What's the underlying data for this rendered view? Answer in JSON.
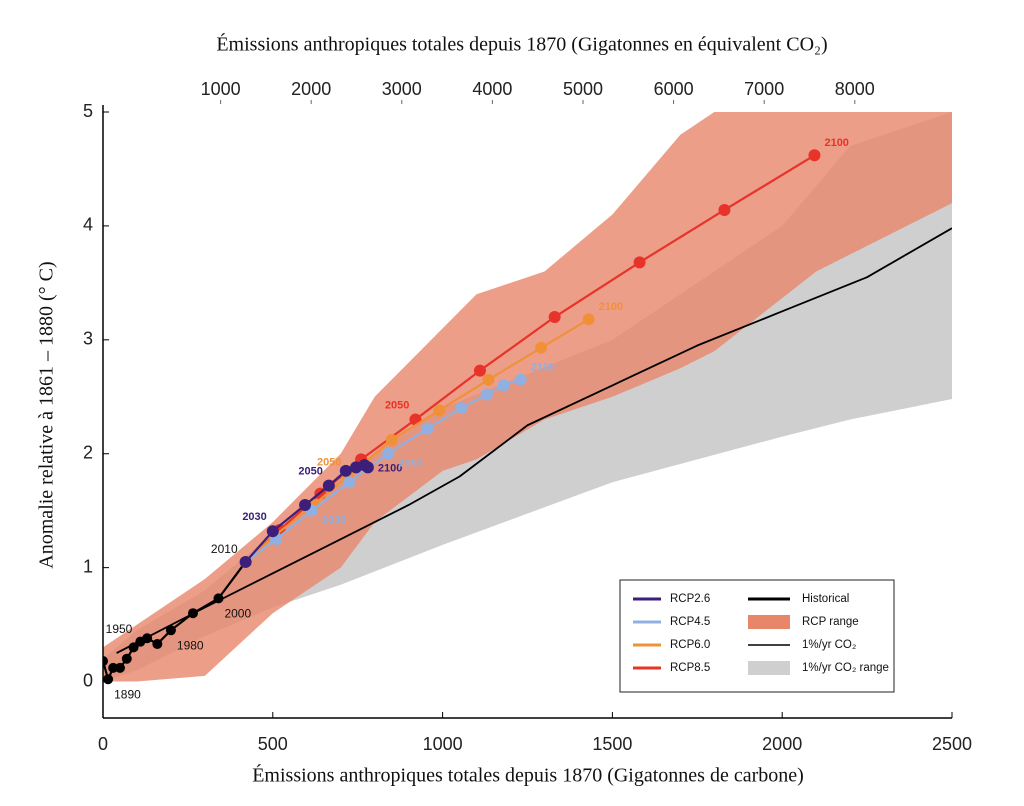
{
  "chart_data": {
    "type": "line",
    "x2_label": "Émissions anthropiques totales depuis 1870 (Gigatonnes en équivalent CO₂)",
    "x_label": "Émissions anthropiques totales depuis 1870 (Gigatonnes de carbone)",
    "y_label": "Anomalie relative à 1861 – 1880 (° C)",
    "xlim": [
      0,
      2500
    ],
    "xticks": [
      0,
      500,
      1000,
      1500,
      2000,
      2500
    ],
    "ylim": [
      -0.32,
      5
    ],
    "yticks": [
      0,
      1,
      2,
      3,
      4,
      5
    ],
    "x2lim": [
      -298,
      9073
    ],
    "x2ticks": [
      1000,
      2000,
      3000,
      4000,
      5000,
      6000,
      7000,
      8000
    ],
    "legend": "lower right",
    "ranges": [
      {
        "name": "RCP range",
        "color": "#e8866a",
        "x": [
          0,
          100,
          300,
          500,
          700,
          800,
          1000,
          1100,
          1300,
          1500,
          1700,
          1800,
          2100,
          2500
        ],
        "upper": [
          0.3,
          0.5,
          0.9,
          1.4,
          2.0,
          2.5,
          3.1,
          3.4,
          3.6,
          4.1,
          4.8,
          5.0,
          5.0,
          5.0
        ],
        "lower": [
          0.0,
          0.0,
          0.05,
          0.6,
          1.0,
          1.4,
          1.85,
          1.95,
          2.3,
          2.5,
          2.75,
          2.9,
          3.6,
          4.2
        ]
      },
      {
        "name": "1%/yr CO₂ range",
        "color": "#cfcfcf",
        "x": [
          0,
          100,
          300,
          500,
          700,
          1000,
          1500,
          2000,
          2200,
          2500
        ],
        "upper": [
          0.2,
          0.45,
          0.8,
          1.3,
          1.8,
          2.4,
          3.0,
          4.0,
          4.7,
          5.0
        ],
        "lower": [
          0.0,
          0.1,
          0.4,
          0.65,
          0.85,
          1.2,
          1.75,
          2.15,
          2.3,
          2.48
        ]
      }
    ],
    "series": [
      {
        "name": "RCP2.6",
        "color": "#3b1f7a",
        "markers": true,
        "x": [
          420,
          500,
          595,
          665,
          715,
          745,
          770,
          780
        ],
        "values": [
          1.05,
          1.32,
          1.55,
          1.72,
          1.85,
          1.88,
          1.9,
          1.88
        ],
        "labels": [
          null,
          "2030",
          null,
          "2050",
          null,
          null,
          null,
          "2100"
        ]
      },
      {
        "name": "RCP4.5",
        "color": "#8fb0e0",
        "markers": true,
        "x": [
          420,
          510,
          615,
          725,
          840,
          955,
          1055,
          1130,
          1180,
          1230
        ],
        "values": [
          1.05,
          1.25,
          1.5,
          1.75,
          2.0,
          2.22,
          2.4,
          2.52,
          2.6,
          2.65
        ],
        "labels": [
          null,
          null,
          "2030",
          null,
          "2050",
          null,
          null,
          null,
          null,
          "2100"
        ]
      },
      {
        "name": "RCP6.0",
        "color": "#f0913a",
        "markers": true,
        "x": [
          420,
          505,
          620,
          720,
          850,
          990,
          1135,
          1290,
          1430
        ],
        "values": [
          1.05,
          1.28,
          1.55,
          1.8,
          2.12,
          2.38,
          2.65,
          2.93,
          3.18
        ],
        "labels": [
          null,
          null,
          null,
          "2050",
          null,
          null,
          null,
          null,
          "2100"
        ]
      },
      {
        "name": "RCP8.5",
        "color": "#e8332a",
        "markers": true,
        "x": [
          420,
          520,
          640,
          760,
          920,
          1110,
          1330,
          1580,
          1830,
          2095
        ],
        "values": [
          1.05,
          1.33,
          1.65,
          1.95,
          2.3,
          2.73,
          3.2,
          3.68,
          4.14,
          4.62
        ],
        "labels": [
          null,
          null,
          null,
          null,
          "2050",
          null,
          null,
          null,
          null,
          "2100"
        ]
      },
      {
        "name": "Historical",
        "color": "#000000",
        "markers": true,
        "x": [
          0,
          15,
          30,
          50,
          70,
          90,
          110,
          130,
          160,
          200,
          265,
          340,
          420
        ],
        "values": [
          0.18,
          0.02,
          0.12,
          0.12,
          0.2,
          0.3,
          0.35,
          0.38,
          0.33,
          0.45,
          0.6,
          0.73,
          1.05
        ],
        "labels": [
          null,
          "1890",
          null,
          null,
          null,
          null,
          "1950",
          null,
          null,
          "1980",
          null,
          "2000",
          "2010"
        ]
      },
      {
        "name": "1%/yr CO₂",
        "color": "#000000",
        "markers": false,
        "x": [
          40,
          300,
          500,
          700,
          900,
          1050,
          1250,
          1500,
          1750,
          2000,
          2250,
          2500
        ],
        "values": [
          0.25,
          0.65,
          0.95,
          1.25,
          1.55,
          1.8,
          2.25,
          2.6,
          2.95,
          3.25,
          3.55,
          3.98
        ]
      }
    ]
  }
}
